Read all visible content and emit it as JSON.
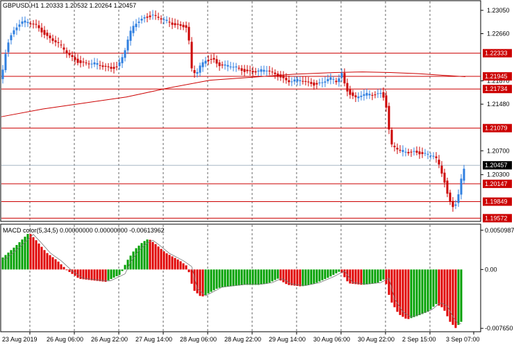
{
  "main_title": "GBPUSD,H1  1.20333 1.20532 1.20264 1.20457",
  "macd_title": "MACD color(5,34,5) 0.00000000 0.00000000 -0.00613962",
  "price_axis": {
    "ticks": [
      "1.23050",
      "1.22660",
      "1.21870",
      "1.21480",
      "1.20700",
      "1.20300"
    ],
    "tick_values": [
      1.2305,
      1.2266,
      1.2187,
      1.2148,
      1.207,
      1.203
    ],
    "range": [
      1.1953,
      1.232
    ]
  },
  "levels": [
    {
      "label": "1.22333",
      "value": 1.22333,
      "color": "#cc0000"
    },
    {
      "label": "1.21945",
      "value": 1.21945,
      "color": "#cc0000"
    },
    {
      "label": "1.21734",
      "value": 1.21734,
      "color": "#cc0000"
    },
    {
      "label": "1.21079",
      "value": 1.21079,
      "color": "#cc0000"
    },
    {
      "label": "1.20147",
      "value": 1.20147,
      "color": "#cc0000"
    },
    {
      "label": "1.19849",
      "value": 1.19849,
      "color": "#cc0000"
    },
    {
      "label": "1.19572",
      "value": 1.19572,
      "color": "#cc0000"
    }
  ],
  "current_price": {
    "label": "1.20457",
    "value": 1.20457
  },
  "macd_axis": {
    "ticks": [
      "0.0050987",
      "0.00",
      "-0.007650"
    ],
    "tick_values": [
      0.0050987,
      0.0,
      -0.00765
    ],
    "range": [
      -0.008,
      0.0058
    ]
  },
  "time_axis": [
    "23 Aug 2019",
    "26 Aug 06:00",
    "26 Aug 22:00",
    "27 Aug 14:00",
    "28 Aug 06:00",
    "28 Aug 22:00",
    "29 Aug 14:00",
    "30 Aug 06:00",
    "30 Aug 22:00",
    "2 Sep 15:00",
    "3 Sep 07:00"
  ],
  "colors": {
    "bull": "#2f7fe0",
    "bear": "#cc0000",
    "macd_up": "#00a000",
    "macd_down": "#e00000",
    "ma": "#cc0000",
    "grid": "#000000"
  },
  "chart_data": {
    "type": "candlestick",
    "symbol": "GBPUSD",
    "timeframe": "H1",
    "ohlc_last": {
      "open": 1.20333,
      "high": 1.20532,
      "low": 1.20264,
      "close": 1.20457
    },
    "close_path": [
      [
        0,
        1.219
      ],
      [
        8,
        1.225
      ],
      [
        14,
        1.2265
      ],
      [
        20,
        1.2275
      ],
      [
        28,
        1.2285
      ],
      [
        38,
        1.2283
      ],
      [
        48,
        1.2282
      ],
      [
        60,
        1.227
      ],
      [
        70,
        1.2258
      ],
      [
        80,
        1.225
      ],
      [
        90,
        1.2238
      ],
      [
        100,
        1.2228
      ],
      [
        112,
        1.222
      ],
      [
        122,
        1.2216
      ],
      [
        134,
        1.2214
      ],
      [
        146,
        1.2212
      ],
      [
        156,
        1.221
      ],
      [
        168,
        1.2212
      ],
      [
        176,
        1.223
      ],
      [
        184,
        1.2262
      ],
      [
        192,
        1.2282
      ],
      [
        200,
        1.229
      ],
      [
        208,
        1.2296
      ],
      [
        218,
        1.2297
      ],
      [
        228,
        1.229
      ],
      [
        240,
        1.2285
      ],
      [
        252,
        1.2282
      ],
      [
        262,
        1.228
      ],
      [
        268,
        1.2276
      ],
      [
        274,
        1.2205
      ],
      [
        280,
        1.2196
      ],
      [
        286,
        1.221
      ],
      [
        294,
        1.2222
      ],
      [
        304,
        1.2226
      ],
      [
        312,
        1.2215
      ],
      [
        322,
        1.2211
      ],
      [
        332,
        1.221
      ],
      [
        342,
        1.2208
      ],
      [
        352,
        1.2205
      ],
      [
        362,
        1.2203
      ],
      [
        372,
        1.2202
      ],
      [
        382,
        1.2204
      ],
      [
        392,
        1.22
      ],
      [
        402,
        1.2196
      ],
      [
        412,
        1.2186
      ],
      [
        422,
        1.2186
      ],
      [
        432,
        1.2187
      ],
      [
        442,
        1.2185
      ],
      [
        452,
        1.2183
      ],
      [
        462,
        1.2184
      ],
      [
        472,
        1.219
      ],
      [
        482,
        1.2185
      ],
      [
        490,
        1.22
      ],
      [
        496,
        1.2175
      ],
      [
        504,
        1.2165
      ],
      [
        510,
        1.2158
      ],
      [
        518,
        1.2162
      ],
      [
        528,
        1.2163
      ],
      [
        538,
        1.2165
      ],
      [
        546,
        1.2168
      ],
      [
        552,
        1.216
      ],
      [
        556,
        1.213
      ],
      [
        560,
        1.208
      ],
      [
        566,
        1.2075
      ],
      [
        574,
        1.2068
      ],
      [
        584,
        1.2068
      ],
      [
        594,
        1.207
      ],
      [
        604,
        1.2067
      ],
      [
        614,
        1.2062
      ],
      [
        624,
        1.206
      ],
      [
        632,
        1.204
      ],
      [
        638,
        1.202
      ],
      [
        644,
        1.199
      ],
      [
        650,
        1.1978
      ],
      [
        656,
        1.1985
      ],
      [
        662,
        1.202
      ],
      [
        668,
        1.2046
      ]
    ],
    "ma_path": [
      [
        0,
        1.2127
      ],
      [
        60,
        1.214
      ],
      [
        120,
        1.215
      ],
      [
        180,
        1.216
      ],
      [
        240,
        1.2175
      ],
      [
        300,
        1.2188
      ],
      [
        360,
        1.2193
      ],
      [
        420,
        1.2198
      ],
      [
        480,
        1.2201
      ],
      [
        520,
        1.2202
      ],
      [
        560,
        1.2201
      ],
      [
        600,
        1.2199
      ],
      [
        640,
        1.2196
      ],
      [
        668,
        1.2194
      ]
    ],
    "macd": [
      [
        0,
        0.0014
      ],
      [
        20,
        0.003
      ],
      [
        40,
        0.0048
      ],
      [
        50,
        0.0038
      ],
      [
        65,
        0.0022
      ],
      [
        80,
        0.0012
      ],
      [
        96,
        -0.0002
      ],
      [
        112,
        -0.0012
      ],
      [
        130,
        -0.0014
      ],
      [
        150,
        -0.0016
      ],
      [
        172,
        -0.0006
      ],
      [
        180,
        0.001
      ],
      [
        192,
        0.0026
      ],
      [
        204,
        0.0036
      ],
      [
        212,
        0.004
      ],
      [
        222,
        0.0033
      ],
      [
        236,
        0.0022
      ],
      [
        256,
        0.0012
      ],
      [
        268,
        0.0004
      ],
      [
        276,
        -0.0026
      ],
      [
        288,
        -0.0036
      ],
      [
        300,
        -0.003
      ],
      [
        312,
        -0.0024
      ],
      [
        330,
        -0.0022
      ],
      [
        350,
        -0.002
      ],
      [
        370,
        -0.002
      ],
      [
        384,
        -0.0018
      ],
      [
        398,
        -0.0012
      ],
      [
        412,
        -0.002
      ],
      [
        432,
        -0.0022
      ],
      [
        452,
        -0.0018
      ],
      [
        472,
        -0.001
      ],
      [
        488,
        -0.0002
      ],
      [
        500,
        -0.0018
      ],
      [
        520,
        -0.002
      ],
      [
        540,
        -0.0018
      ],
      [
        552,
        -0.0012
      ],
      [
        560,
        -0.004
      ],
      [
        572,
        -0.0058
      ],
      [
        584,
        -0.0065
      ],
      [
        600,
        -0.006
      ],
      [
        614,
        -0.0055
      ],
      [
        626,
        -0.0045
      ],
      [
        636,
        -0.005
      ],
      [
        646,
        -0.0068
      ],
      [
        654,
        -0.0076
      ],
      [
        660,
        -0.007
      ],
      [
        664,
        -0.0066
      ]
    ]
  }
}
